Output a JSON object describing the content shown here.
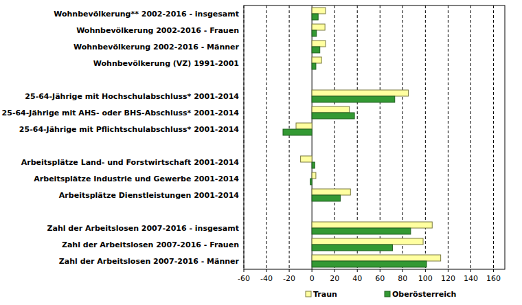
{
  "chart_data": {
    "type": "bar",
    "orientation": "horizontal",
    "grid": true,
    "legend": "bottom",
    "categories": [
      "Wohnbevölkerung** 2002-2016 - insgesamt",
      "Wohnbevölkerung 2002-2016 - Frauen",
      "Wohnbevölkerung 2002-2016 - Männer",
      "Wohnbevölkerung (VZ) 1991-2001",
      null,
      "25-64-Jährige mit Hochschulabschluss* 2001-2014",
      "25-64-Jährige mit AHS- oder BHS-Abschluss* 2001-2014",
      "25-64-Jährige mit Pflichtschulabschluss* 2001-2014",
      null,
      "Arbeitsplätze Land- und Forstwirtschaft 2001-2014",
      "Arbeitsplätze Industrie und Gewerbe 2001-2014",
      "Arbeitsplätze Dienstleistungen 2001-2014",
      null,
      "Zahl der Arbeitslosen 2007-2016 - insgesamt",
      "Zahl der Arbeitslosen 2007-2016 - Frauen",
      "Zahl der Arbeitslosen 2007-2016 - Männer"
    ],
    "series": [
      {
        "name": "Traun",
        "color": "#ffffa0",
        "values": [
          12,
          11.5,
          12,
          8.5,
          null,
          85,
          33,
          -14,
          null,
          -10,
          3.5,
          34,
          null,
          106,
          98,
          113.5
        ]
      },
      {
        "name": "Oberösterreich",
        "color": "#339933",
        "values": [
          5.5,
          4,
          7,
          3.5,
          null,
          73,
          37.5,
          -25.5,
          null,
          2.5,
          -1.5,
          25,
          null,
          87,
          71,
          101
        ]
      }
    ],
    "xlim": [
      -60,
      170
    ],
    "xticks": [
      -60,
      -40,
      -20,
      0,
      20,
      40,
      60,
      80,
      100,
      120,
      140,
      160
    ]
  }
}
